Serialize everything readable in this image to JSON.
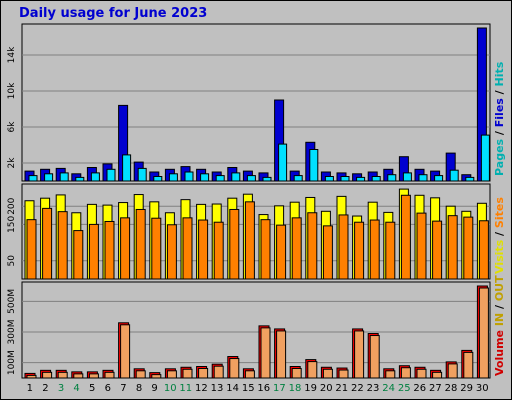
{
  "chart_title": "Daily usage for June 2023",
  "colors": {
    "hits": "#00e0ff",
    "files": "#0000d0",
    "pages": "#00b0b0",
    "visits": "#ffff00",
    "sites": "#ff8000",
    "kbytes": "#ff0000",
    "volume_bar": "#f0a060",
    "weekend": "#008040",
    "weekday": "#000000"
  },
  "chart_data": [
    {
      "type": "bar",
      "name": "hits-files",
      "x": [
        1,
        2,
        3,
        4,
        5,
        6,
        7,
        8,
        9,
        10,
        11,
        12,
        13,
        14,
        15,
        16,
        17,
        18,
        19,
        20,
        21,
        22,
        23,
        24,
        25,
        26,
        27,
        28,
        29,
        30
      ],
      "series": [
        {
          "name": "Hits",
          "values": [
            1100,
            1300,
            1400,
            800,
            1500,
            1900,
            8400,
            2100,
            1000,
            1300,
            1600,
            1300,
            1000,
            1500,
            1100,
            900,
            9000,
            1100,
            4300,
            1000,
            900,
            800,
            1000,
            1300,
            2700,
            1300,
            1100,
            3100,
            700,
            17000
          ]
        },
        {
          "name": "Files",
          "values": [
            600,
            800,
            900,
            400,
            900,
            1300,
            2900,
            1400,
            500,
            800,
            1000,
            800,
            600,
            900,
            600,
            400,
            4100,
            600,
            3500,
            500,
            500,
            400,
            500,
            700,
            900,
            700,
            600,
            1200,
            400,
            5100
          ]
        }
      ],
      "ylim": [
        0,
        17000
      ],
      "ticks": [
        "2k",
        "6k",
        "10k",
        "14k"
      ],
      "tick_values": [
        2000,
        6000,
        10000,
        14000
      ]
    },
    {
      "type": "bar",
      "name": "visits-sites",
      "x": [
        1,
        2,
        3,
        4,
        5,
        6,
        7,
        8,
        9,
        10,
        11,
        12,
        13,
        14,
        15,
        16,
        17,
        18,
        19,
        20,
        21,
        22,
        23,
        24,
        25,
        26,
        27,
        28,
        29,
        30
      ],
      "series": [
        {
          "name": "Visits",
          "values": [
            215,
            222,
            231,
            182,
            205,
            203,
            210,
            232,
            212,
            182,
            218,
            205,
            206,
            222,
            233,
            177,
            201,
            211,
            224,
            186,
            227,
            173,
            211,
            183,
            247,
            230,
            223,
            200,
            186,
            208
          ]
        },
        {
          "name": "Sites",
          "values": [
            163,
            194,
            185,
            133,
            150,
            158,
            168,
            191,
            167,
            149,
            168,
            162,
            156,
            191,
            212,
            163,
            148,
            168,
            182,
            146,
            176,
            156,
            162,
            156,
            230,
            181,
            159,
            174,
            170,
            160
          ]
        }
      ],
      "ylim": [
        0,
        250
      ],
      "ticks": [
        "50",
        "150",
        "200"
      ],
      "tick_values": [
        50,
        150,
        200
      ]
    },
    {
      "type": "bar",
      "name": "volume",
      "x": [
        1,
        2,
        3,
        4,
        5,
        6,
        7,
        8,
        9,
        10,
        11,
        12,
        13,
        14,
        15,
        16,
        17,
        18,
        19,
        20,
        21,
        22,
        23,
        24,
        25,
        26,
        27,
        28,
        29,
        30
      ],
      "series": [
        {
          "name": "Volume",
          "values": [
            30,
            50,
            50,
            40,
            40,
            50,
            360,
            60,
            35,
            60,
            70,
            75,
            90,
            140,
            60,
            340,
            320,
            75,
            120,
            70,
            65,
            320,
            290,
            60,
            80,
            70,
            50,
            105,
            180,
            600
          ]
        }
      ],
      "ylim": [
        0,
        600
      ],
      "ticks": [
        "100M",
        "300M",
        "500M"
      ],
      "tick_values": [
        100,
        300,
        500
      ]
    }
  ],
  "right_labels": {
    "top": {
      "pages": "Pages",
      "slash1": " / ",
      "files": "Files",
      "slash2": " / ",
      "hits": "Hits"
    },
    "mid": {
      "visits": "Visits",
      "slash": " / ",
      "sites": "Sites"
    },
    "bot": {
      "volume": "Volume",
      "in": " IN",
      "slash": " / ",
      "out": "OUT"
    }
  },
  "weekend_days": [
    3,
    4,
    10,
    11,
    17,
    18,
    24,
    25
  ]
}
